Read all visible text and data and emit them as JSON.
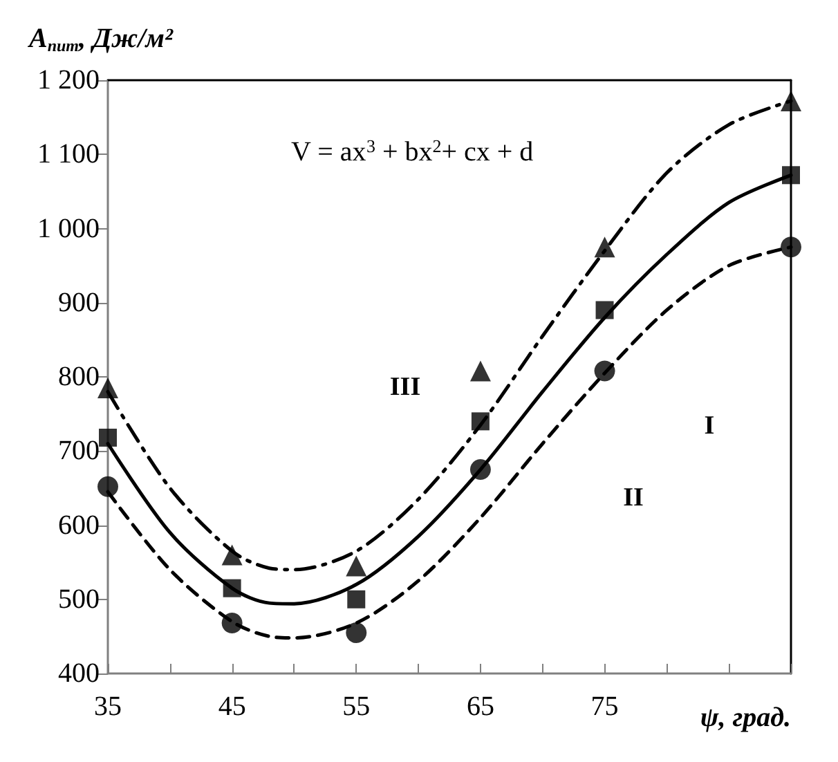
{
  "chart_data": {
    "type": "scatter",
    "ylabel": "A$_{пит}$, Дж/м²",
    "xlabel": "ψ, град.",
    "xlim": [
      35,
      90
    ],
    "xticks": [
      35,
      {
        "value": 40,
        "label": null
      },
      45,
      {
        "value": 50,
        "label": null
      },
      55,
      {
        "value": 60,
        "label": null
      },
      65,
      {
        "value": 70,
        "label": null
      },
      75,
      {
        "value": 80,
        "label": null
      },
      {
        "value": 85,
        "label": null
      },
      {
        "value": 90,
        "label": null
      }
    ],
    "ylim": [
      400,
      1200
    ],
    "yticks": [
      400,
      500,
      600,
      700,
      800,
      900,
      {
        "value": 1000,
        "label": "1 000"
      },
      {
        "value": 1100,
        "label": "1 100"
      },
      {
        "value": 1200,
        "label": "1 200"
      }
    ],
    "grid": false,
    "series": [
      {
        "color": "#000000",
        "marker": "triangle",
        "x": [
          35,
          45,
          55,
          65,
          75,
          90
        ],
        "values": [
          785,
          560,
          545,
          808,
          975,
          1172
        ]
      },
      {
        "color": "#000000",
        "marker": "square",
        "x": [
          35,
          45,
          55,
          65,
          75,
          90
        ],
        "values": [
          718,
          515,
          500,
          740,
          890,
          1072
        ]
      },
      {
        "color": "#000000",
        "marker": "circle",
        "x": [
          35,
          45,
          55,
          65,
          75,
          90
        ],
        "values": [
          652,
          468,
          455,
          675,
          808,
          975
        ]
      },
      {
        "type": "line",
        "color": "#000000",
        "marker": "none",
        "line_style": "dashed",
        "x": [
          35,
          40,
          45,
          48,
          50,
          55,
          60,
          65,
          70,
          75,
          80,
          85,
          90
        ],
        "values": [
          645,
          540,
          470,
          450,
          448,
          468,
          525,
          610,
          710,
          805,
          890,
          950,
          975
        ]
      },
      {
        "type": "line",
        "color": "#000000",
        "marker": "none",
        "line_style": "solid",
        "x": [
          35,
          40,
          45,
          48,
          50,
          55,
          60,
          65,
          70,
          75,
          80,
          85,
          90
        ],
        "values": [
          710,
          590,
          515,
          495,
          494,
          520,
          585,
          675,
          780,
          880,
          965,
          1035,
          1072
        ]
      },
      {
        "type": "line",
        "color": "#000000",
        "marker": "none",
        "line_style": "dashdot",
        "x": [
          35,
          40,
          45,
          48,
          50,
          55,
          60,
          65,
          70,
          75,
          80,
          85,
          90
        ],
        "values": [
          780,
          650,
          565,
          542,
          540,
          565,
          635,
          735,
          855,
          970,
          1075,
          1140,
          1172
        ]
      }
    ],
    "annotations": [
      "V = ax$^{3}$ + bx$^{2}$+ cx + d",
      "III",
      "II",
      "I"
    ]
  }
}
